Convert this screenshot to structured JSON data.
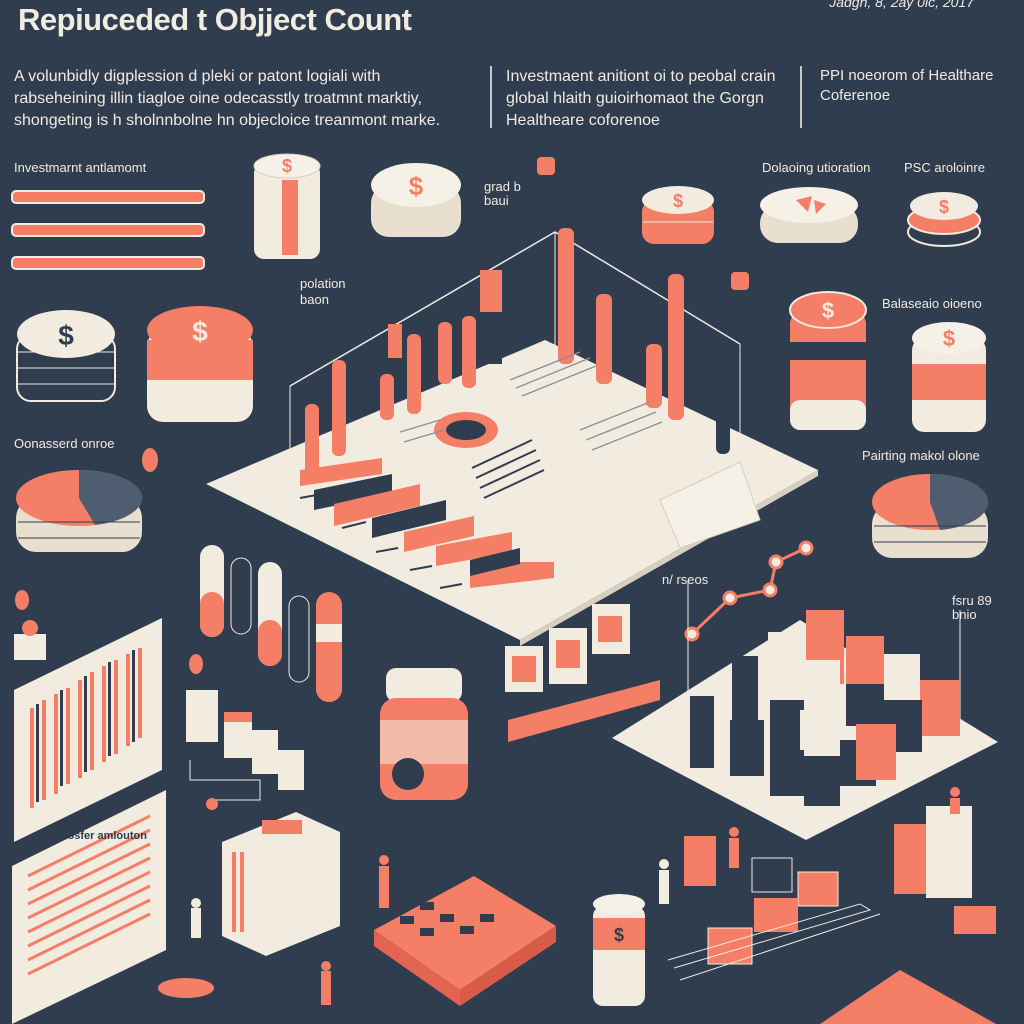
{
  "header": {
    "title": "Repiuceded t Objject Count",
    "date": "Jadgh, 8, 2ay 0lc, 2017",
    "intro": "A volunbidly digplession d pleki or patont logiali with rabseheining illin tiagloe oine odecasstly troatmnt marktiy, shongeting is h sholnnbolne hn objecloice treanmont marke.",
    "middle": "Investmaent anitiont oi to peobal crain global hlaith guioirhomaot the Gorgn Healtheare coforenoe",
    "right": "PPI noeorom of Healthare Coferenoe"
  },
  "labels": {
    "investment": "Investmarnt antlamomt",
    "delaying": "Dolaoing utioration",
    "pdf": "PSC aroloinre",
    "graph_note": "grad b baui",
    "distribution": "polation baon",
    "balanced": "Balaseaio oioeno",
    "concessed": "Oonasserd onroe",
    "paining": "Pairting makol olone",
    "growth": "n/ rseos",
    "small_right": "fsru 89 bnio",
    "sheet_caption": "Pitouosfer amlouton"
  },
  "icons": [
    "dollar-icon",
    "percent-icon",
    "pin-icon",
    "person-icon"
  ],
  "colors": {
    "background": "#2f3d4f",
    "coral": "#f47e66",
    "cream": "#f1ebe0",
    "navy": "#2f3d4f"
  }
}
